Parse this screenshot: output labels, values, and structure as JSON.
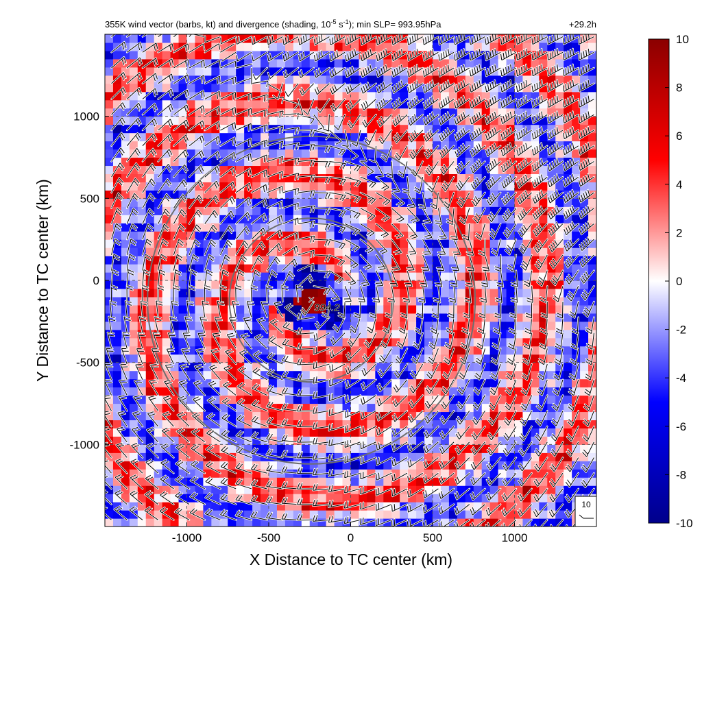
{
  "chart_data": {
    "type": "heatmap",
    "title_main": "355K wind vector (barbs, kt) and divergence (shading, 10",
    "title_exp1": "-5",
    "title_mid": " s",
    "title_exp2": "-1",
    "title_end": "); min SLP= 993.95hPa",
    "time_label": "+29.2h",
    "xlabel": "X Distance to TC center (km)",
    "ylabel": "Y Distance to TC center (km)",
    "xlim": [
      -1500,
      1500
    ],
    "ylim": [
      -1500,
      1500
    ],
    "x_ticks": [
      -1000,
      -500,
      0,
      500,
      1000
    ],
    "y_ticks": [
      1000,
      500,
      0,
      -500,
      -1000
    ],
    "x_tick_labels": [
      "-1000",
      "-500",
      "0",
      "500",
      "1000"
    ],
    "y_tick_labels": [
      "1000",
      "500",
      "0",
      "-500",
      "-1000"
    ],
    "grid": true,
    "colorbar": {
      "min": -10,
      "max": 10,
      "ticks": [
        10,
        8,
        6,
        4,
        2,
        0,
        -2,
        -4,
        -6,
        -8,
        -10
      ],
      "tick_labels": [
        "10",
        "8",
        "6",
        "4",
        "2",
        "0",
        "-2",
        "-4",
        "-6",
        "-8",
        "-10"
      ],
      "colors": [
        "#00008b",
        "#0000ff",
        "#ffffff",
        "#ff0000",
        "#8b0000"
      ]
    },
    "center": {
      "x": -240,
      "y": -120,
      "marker": "×",
      "label": "994.2"
    },
    "range_rings": [
      {
        "cx": -240,
        "cy": -120,
        "r": 500
      },
      {
        "cx": -240,
        "cy": -120,
        "r": 1000
      }
    ],
    "reference_barb": {
      "label": "10"
    }
  }
}
